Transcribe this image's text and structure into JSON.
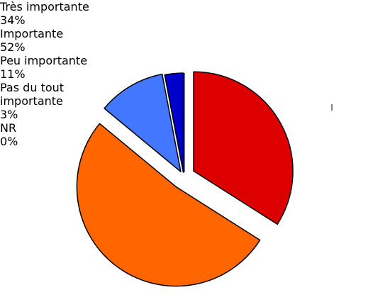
{
  "chart_data": {
    "type": "pie",
    "categories": [
      "Très importante",
      "Importante",
      "Peu importante",
      "Pas du tout importante",
      "NR"
    ],
    "values": [
      34,
      52,
      11,
      3,
      0
    ],
    "value_labels": [
      "34%",
      "52%",
      "11%",
      "3%",
      "0%"
    ],
    "colors": [
      "#dd0000",
      "#ff6600",
      "#4477ff",
      "#0000cc",
      "#000066"
    ]
  }
}
